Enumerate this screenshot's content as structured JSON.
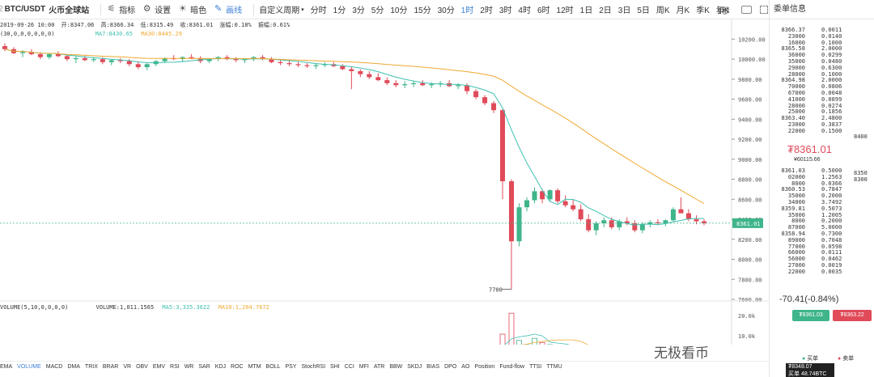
{
  "toolbar": {
    "symbol": "BTC/USDT",
    "exchange": "火币全球站",
    "indicators_label": "指标",
    "settings_label": "设置",
    "theme_label": "暗色",
    "draw_label": "画线",
    "custom_period_label": "自定义周期",
    "intervals": [
      "分时",
      "1分",
      "3分",
      "5分",
      "10分",
      "15分",
      "30分",
      "1时",
      "2时",
      "3时",
      "4时",
      "6时",
      "12时",
      "1日",
      "2日",
      "3日",
      "5日",
      "周K",
      "月K",
      "季K",
      "年K"
    ],
    "active_interval": "1时",
    "refresh_label": "1秒"
  },
  "ohlc_info": {
    "date": "2019-09-26 10:00",
    "open": "开:8347.06",
    "high": "高:8366.34",
    "low": "低:8315.49",
    "close": "收:8361.01",
    "change": "涨幅:0.18%",
    "amplitude": "振幅:0.61%",
    "params": "(30,0,0,0,0,0,0)",
    "ma7": "MA7:8430.65",
    "ma30": "MA30:8445.29"
  },
  "volume_info": {
    "name": "VOLUME(5,10,0,0,0,0)",
    "volume": "VOLUME:1,011.1565",
    "ma5": "MA5:3,335.3622",
    "ma10": "MA10:1,204.7672",
    "axis_20k": "20.0k",
    "axis_10k": "10.0k",
    "current_vol": "1.0k"
  },
  "price_axis": [
    "10200.00",
    "10000.00",
    "9800.00",
    "9600.00",
    "9400.00",
    "9200.00",
    "9000.00",
    "8800.00",
    "8600.00",
    "8400.00",
    "8200.00",
    "8000.00",
    "7800.00",
    "7600.00"
  ],
  "current_price_tag": "8361.01",
  "low_marker": "7700",
  "indicator_bar": [
    "EMA",
    "VOLUME",
    "MACD",
    "DMA",
    "TRIX",
    "BRAR",
    "VR",
    "OBV",
    "EMV",
    "RSI",
    "WR",
    "SAR",
    "KDJ",
    "ROC",
    "MTM",
    "BOLL",
    "PSY",
    "StochRSI",
    "SHI",
    "CCI",
    "MFI",
    "ATR",
    "BBW",
    "SKDJ",
    "BIAS",
    "DPO",
    "AO",
    "Position",
    "Fund-flow",
    "TTSI",
    "TTMU"
  ],
  "active_indicator": "VOLUME",
  "orderbook": {
    "title": "委单信息",
    "asks": [
      [
        "8366.37",
        "0.0011"
      ],
      [
        "23000",
        "0.0140"
      ],
      [
        "16000",
        "0.1000"
      ],
      [
        "8365.58",
        "2.0000"
      ],
      [
        "36000",
        "0.0299"
      ],
      [
        "35000",
        "0.0480"
      ],
      [
        "29000",
        "0.6300"
      ],
      [
        "28000",
        "0.1000"
      ],
      [
        "8364.98",
        "2.0000"
      ],
      [
        "70000",
        "0.0806"
      ],
      [
        "67000",
        "0.0048"
      ],
      [
        "41000",
        "0.0899"
      ],
      [
        "28000",
        "0.0274"
      ],
      [
        "25000",
        "0.1856"
      ],
      [
        "8363.40",
        "2.4800"
      ],
      [
        "23000",
        "0.3837"
      ],
      [
        "22000",
        "0.1500"
      ]
    ],
    "ask_side_price": "8400",
    "price_big": "₮8361.01",
    "price_sub": "¥60115.66",
    "bids": [
      [
        "8361.03",
        "0.5000"
      ],
      [
        "02000",
        "1.2563"
      ],
      [
        "8000",
        "0.0366"
      ],
      [
        "8360.53",
        "0.7847"
      ],
      [
        "35000",
        "0.2000"
      ],
      [
        "34000",
        "3.7492"
      ],
      [
        "8359.81",
        "0.5073"
      ],
      [
        "35000",
        "1.2005"
      ],
      [
        "8000",
        "0.2000"
      ],
      [
        "87000",
        "5.0000"
      ],
      [
        "8358.94",
        "0.7300"
      ],
      [
        "89000",
        "0.7048"
      ],
      [
        "77000",
        "0.0598"
      ],
      [
        "66000",
        "0.0111"
      ],
      [
        "56000",
        "0.0462"
      ],
      [
        "27000",
        "0.0019"
      ],
      [
        "22000",
        "0.0035"
      ]
    ],
    "bid_side_prices": [
      "8350",
      "8300"
    ],
    "change": "-70.41(-0.84%)",
    "buy_btn": "₮8361.03",
    "sell_btn": "₮8363.22",
    "buy_label": "买单",
    "sell_label": "卖单",
    "tooltip_price": "₮8348.07",
    "tooltip_vol": "买单 48.74BTC"
  },
  "watermark": "无极看币",
  "colors": {
    "up": "#3fb58a",
    "down": "#e04a59",
    "ma7": "#3fc0b0",
    "ma30": "#f0a830",
    "accent": "#3b7ed6"
  },
  "chart_data": {
    "type": "candlestick",
    "title": "BTC/USDT",
    "ylim": [
      7600,
      10300
    ],
    "candles": [
      [
        10130,
        10160,
        10080,
        10100
      ],
      [
        10100,
        10120,
        10050,
        10060
      ],
      [
        10060,
        10090,
        10020,
        10070
      ],
      [
        10070,
        10100,
        10040,
        10050
      ],
      [
        10050,
        10070,
        10000,
        10020
      ],
      [
        10020,
        10060,
        10000,
        10050
      ],
      [
        10050,
        10080,
        10020,
        10030
      ],
      [
        10030,
        10050,
        9980,
        10000
      ],
      [
        10000,
        10030,
        9960,
        10010
      ],
      [
        10010,
        10040,
        9980,
        9990
      ],
      [
        9990,
        10020,
        9970,
        10000
      ],
      [
        10000,
        10020,
        9950,
        9970
      ],
      [
        9970,
        10000,
        9940,
        9990
      ],
      [
        9990,
        10010,
        9960,
        9980
      ],
      [
        9980,
        10000,
        9930,
        9950
      ],
      [
        9950,
        9980,
        9900,
        9920
      ],
      [
        9920,
        9960,
        9890,
        9950
      ],
      [
        9950,
        9990,
        9930,
        9980
      ],
      [
        9980,
        10020,
        9960,
        10010
      ],
      [
        10010,
        10040,
        9990,
        10000
      ],
      [
        10000,
        10030,
        9970,
        10020
      ],
      [
        10020,
        10050,
        10000,
        10010
      ],
      [
        10010,
        10030,
        9960,
        9980
      ],
      [
        9980,
        10010,
        9960,
        10000
      ],
      [
        10000,
        10030,
        9980,
        10020
      ],
      [
        10020,
        10040,
        9990,
        10000
      ],
      [
        10000,
        10020,
        9970,
        9990
      ],
      [
        9990,
        10010,
        9960,
        10000
      ],
      [
        10000,
        10030,
        9980,
        10020
      ],
      [
        10020,
        10040,
        9990,
        10000
      ],
      [
        10000,
        10020,
        9960,
        9970
      ],
      [
        9970,
        9990,
        9940,
        9960
      ],
      [
        9960,
        9990,
        9930,
        9950
      ],
      [
        9950,
        9980,
        9920,
        9940
      ],
      [
        9940,
        9960,
        9910,
        9930
      ],
      [
        9930,
        9960,
        9900,
        9940
      ],
      [
        9940,
        9970,
        9920,
        9950
      ],
      [
        9950,
        9970,
        9920,
        9930
      ],
      [
        9930,
        9950,
        9890,
        9900
      ],
      [
        9900,
        9930,
        9700,
        9880
      ],
      [
        9880,
        9900,
        9820,
        9850
      ],
      [
        9850,
        9880,
        9800,
        9820
      ],
      [
        9820,
        9860,
        9780,
        9790
      ],
      [
        9790,
        9820,
        9740,
        9760
      ],
      [
        9760,
        9790,
        9720,
        9740
      ],
      [
        9740,
        9780,
        9710,
        9750
      ],
      [
        9750,
        9780,
        9720,
        9760
      ],
      [
        9760,
        9790,
        9730,
        9740
      ],
      [
        9740,
        9770,
        9710,
        9750
      ],
      [
        9750,
        9780,
        9720,
        9760
      ],
      [
        9760,
        9790,
        9720,
        9730
      ],
      [
        9730,
        9760,
        9700,
        9740
      ],
      [
        9740,
        9760,
        9650,
        9680
      ],
      [
        9680,
        9700,
        9600,
        9620
      ],
      [
        9620,
        9640,
        9540,
        9560
      ],
      [
        9560,
        9580,
        9460,
        9490
      ],
      [
        9490,
        9500,
        8600,
        8780
      ],
      [
        8780,
        8800,
        7700,
        8180
      ],
      [
        8180,
        8560,
        8130,
        8520
      ],
      [
        8520,
        8620,
        8480,
        8590
      ],
      [
        8590,
        8720,
        8560,
        8680
      ],
      [
        8680,
        8700,
        8560,
        8600
      ],
      [
        8600,
        8700,
        8580,
        8690
      ],
      [
        8690,
        8710,
        8560,
        8580
      ],
      [
        8580,
        8640,
        8520,
        8540
      ],
      [
        8540,
        8600,
        8480,
        8500
      ],
      [
        8500,
        8550,
        8380,
        8400
      ],
      [
        8400,
        8450,
        8270,
        8290
      ],
      [
        8290,
        8380,
        8240,
        8360
      ],
      [
        8360,
        8420,
        8320,
        8390
      ],
      [
        8390,
        8420,
        8300,
        8320
      ],
      [
        8320,
        8400,
        8290,
        8380
      ],
      [
        8380,
        8420,
        8340,
        8360
      ],
      [
        8360,
        8390,
        8270,
        8290
      ],
      [
        8290,
        8370,
        8260,
        8350
      ],
      [
        8350,
        8390,
        8320,
        8370
      ],
      [
        8370,
        8400,
        8340,
        8360
      ],
      [
        8360,
        8400,
        8330,
        8390
      ],
      [
        8390,
        8520,
        8380,
        8500
      ],
      [
        8500,
        8620,
        8470,
        8460
      ],
      [
        8460,
        8500,
        8380,
        8400
      ],
      [
        8400,
        8440,
        8350,
        8380
      ],
      [
        8380,
        8400,
        8340,
        8360
      ]
    ],
    "volume": [
      2,
      2,
      1.5,
      2,
      1.8,
      1.6,
      2,
      1.8,
      2.2,
      1.5,
      2,
      1.7,
      1.6,
      2,
      2.4,
      1.8,
      2,
      1.6,
      1.5,
      2,
      2.2,
      1.8,
      2,
      1.5,
      1.8,
      1.6,
      2,
      1.8,
      1.9,
      2,
      1.7,
      1.8,
      1.6,
      2.2,
      2,
      1.8,
      2.1,
      2.5,
      2.2,
      4.5,
      3,
      2.4,
      2.6,
      2.8,
      2.2,
      2.4,
      2,
      2.2,
      2.1,
      1.8,
      2.2,
      2.5,
      3,
      4,
      4.5,
      6,
      12,
      22,
      9,
      7,
      10,
      8,
      7,
      6.5,
      5,
      6,
      4.5,
      5,
      3.5,
      3,
      3.2,
      4,
      3.5,
      3,
      3.2,
      2.8,
      3,
      2.5,
      2.7,
      3,
      2.2,
      2.5,
      2.2
    ]
  }
}
